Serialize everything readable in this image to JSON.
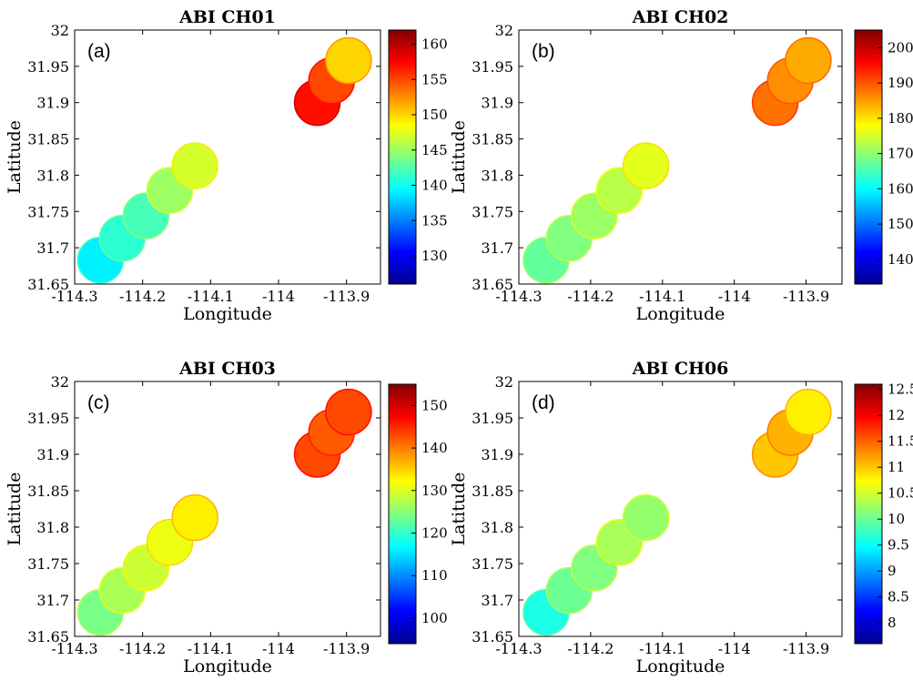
{
  "chart_data": [
    {
      "type": "heatmap",
      "panel_label": "(a)",
      "title": "ABI CH01",
      "xlabel": "Longitude",
      "ylabel": "Latitude",
      "xlim": [
        -114.3,
        -113.85
      ],
      "ylim": [
        31.65,
        32.0
      ],
      "xticks": [
        "-114.3",
        "-114.2",
        "-114.1",
        "-114",
        "-113.9"
      ],
      "yticks": [
        "31.65",
        "31.7",
        "31.75",
        "31.8",
        "31.85",
        "31.9",
        "31.95",
        "32"
      ],
      "colorbar": {
        "range": [
          126,
          162
        ],
        "ticks": [
          "130",
          "135",
          "140",
          "145",
          "150",
          "155",
          "160"
        ],
        "colormap": "jet"
      },
      "footprints": [
        {
          "lon": -114.262,
          "lat": 31.683,
          "value": 139
        },
        {
          "lon": -114.23,
          "lat": 31.713,
          "value": 141
        },
        {
          "lon": -114.195,
          "lat": 31.744,
          "value": 142
        },
        {
          "lon": -114.16,
          "lat": 31.779,
          "value": 145
        },
        {
          "lon": -114.123,
          "lat": 31.813,
          "value": 147
        },
        {
          "lon": -113.943,
          "lat": 31.9,
          "value": 157
        },
        {
          "lon": -113.922,
          "lat": 31.93,
          "value": 155
        },
        {
          "lon": -113.897,
          "lat": 31.958,
          "value": 150
        }
      ]
    },
    {
      "type": "heatmap",
      "panel_label": "(b)",
      "title": "ABI CH02",
      "xlabel": "Longitude",
      "ylabel": "Latitude",
      "xlim": [
        -114.3,
        -113.85
      ],
      "ylim": [
        31.65,
        32.0
      ],
      "xticks": [
        "-114.3",
        "-114.2",
        "-114.1",
        "-114",
        "-113.9"
      ],
      "yticks": [
        "31.65",
        "31.7",
        "31.75",
        "31.8",
        "31.85",
        "31.9",
        "31.95",
        "32"
      ],
      "colorbar": {
        "range": [
          133,
          205
        ],
        "ticks": [
          "140",
          "150",
          "160",
          "170",
          "180",
          "190",
          "200"
        ],
        "colormap": "jet"
      },
      "footprints": [
        {
          "lon": -114.262,
          "lat": 31.683,
          "value": 167
        },
        {
          "lon": -114.23,
          "lat": 31.713,
          "value": 169
        },
        {
          "lon": -114.195,
          "lat": 31.744,
          "value": 171
        },
        {
          "lon": -114.16,
          "lat": 31.779,
          "value": 173
        },
        {
          "lon": -114.123,
          "lat": 31.813,
          "value": 176
        },
        {
          "lon": -113.943,
          "lat": 31.9,
          "value": 188
        },
        {
          "lon": -113.922,
          "lat": 31.93,
          "value": 186
        },
        {
          "lon": -113.897,
          "lat": 31.958,
          "value": 184
        }
      ]
    },
    {
      "type": "heatmap",
      "panel_label": "(c)",
      "title": "ABI CH03",
      "xlabel": "Longitude",
      "ylabel": "Latitude",
      "xlim": [
        -114.3,
        -113.85
      ],
      "ylim": [
        31.65,
        32.0
      ],
      "xticks": [
        "-114.3",
        "-114.2",
        "-114.1",
        "-114",
        "-113.9"
      ],
      "yticks": [
        "31.65",
        "31.7",
        "31.75",
        "31.8",
        "31.85",
        "31.9",
        "31.95",
        "32"
      ],
      "colorbar": {
        "range": [
          94,
          155
        ],
        "ticks": [
          "100",
          "110",
          "120",
          "130",
          "140",
          "150"
        ],
        "colormap": "jet"
      },
      "footprints": [
        {
          "lon": -114.262,
          "lat": 31.683,
          "value": 124
        },
        {
          "lon": -114.23,
          "lat": 31.713,
          "value": 127
        },
        {
          "lon": -114.195,
          "lat": 31.744,
          "value": 129
        },
        {
          "lon": -114.16,
          "lat": 31.779,
          "value": 131
        },
        {
          "lon": -114.123,
          "lat": 31.813,
          "value": 133
        },
        {
          "lon": -113.943,
          "lat": 31.9,
          "value": 143
        },
        {
          "lon": -113.922,
          "lat": 31.93,
          "value": 142
        },
        {
          "lon": -113.897,
          "lat": 31.958,
          "value": 143
        }
      ]
    },
    {
      "type": "heatmap",
      "panel_label": "(d)",
      "title": "ABI CH06",
      "xlabel": "Longitude",
      "ylabel": "Latitude",
      "xlim": [
        -114.3,
        -113.85
      ],
      "ylim": [
        31.65,
        32.0
      ],
      "xticks": [
        "-114.3",
        "-114.2",
        "-114.1",
        "-114",
        "-113.9"
      ],
      "yticks": [
        "31.65",
        "31.7",
        "31.75",
        "31.8",
        "31.85",
        "31.9",
        "31.95",
        "32"
      ],
      "colorbar": {
        "range": [
          7.6,
          12.6
        ],
        "ticks": [
          "8",
          "8.5",
          "9",
          "9.5",
          "10",
          "10.5",
          "11",
          "11.5",
          "12",
          "12.5"
        ],
        "colormap": "jet"
      },
      "footprints": [
        {
          "lon": -114.262,
          "lat": 31.683,
          "value": 9.6
        },
        {
          "lon": -114.23,
          "lat": 31.713,
          "value": 10.0
        },
        {
          "lon": -114.195,
          "lat": 31.744,
          "value": 10.1
        },
        {
          "lon": -114.16,
          "lat": 31.779,
          "value": 10.3
        },
        {
          "lon": -114.123,
          "lat": 31.813,
          "value": 10.2
        },
        {
          "lon": -113.943,
          "lat": 31.9,
          "value": 11.0
        },
        {
          "lon": -113.922,
          "lat": 31.93,
          "value": 11.1
        },
        {
          "lon": -113.897,
          "lat": 31.958,
          "value": 10.8
        }
      ]
    }
  ]
}
